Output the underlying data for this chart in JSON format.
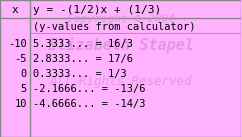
{
  "title_left": "x",
  "title_right": "y = -(1/2)x + (1/3)",
  "subtitle": "(y-values from calculator)",
  "rows": [
    [
      "-10",
      "5.3333... = 16/3"
    ],
    [
      " -5",
      "2.8333... = 17/6"
    ],
    [
      "  0",
      "0.3333... = 1/3"
    ],
    [
      "  5",
      "-2.1666... = -13/6"
    ],
    [
      " 10",
      "-4.6666... = -14/3"
    ]
  ],
  "bg_color": "#ffb3ff",
  "watermark_lines": [
    "Copyright © 2004",
    "Elizabeth Stapel",
    "All Rights Reserved"
  ],
  "watermark_color": "#dd88dd",
  "divider_color": "#888888",
  "text_color": "#000000",
  "font_size": 7.5,
  "title_font_size": 8.0
}
